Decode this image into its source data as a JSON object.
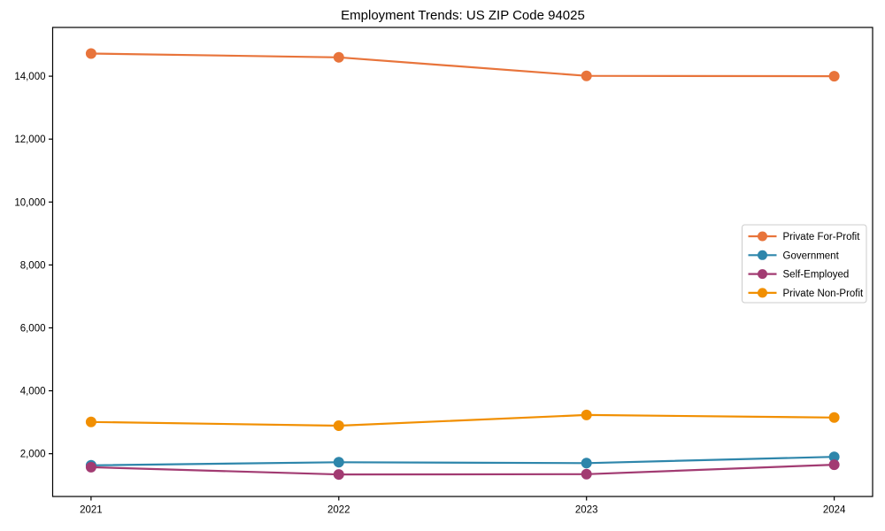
{
  "chart_data": {
    "type": "line",
    "title": "Employment Trends: US ZIP Code 94025",
    "xlabel": "",
    "ylabel": "",
    "x": [
      2021,
      2022,
      2023,
      2024
    ],
    "xtick_labels": [
      "2021",
      "2022",
      "2023",
      "2024"
    ],
    "yticks": [
      2000,
      4000,
      6000,
      8000,
      10000,
      12000,
      14000
    ],
    "ytick_labels": [
      "2,000",
      "4,000",
      "6,000",
      "8,000",
      "10,000",
      "12,000",
      "14,000"
    ],
    "xlim": [
      2020.845,
      2024.155
    ],
    "ylim": [
      640,
      15550
    ],
    "grid": false,
    "legend_position": "center right",
    "background_color": "#ffffff",
    "spine_color": "#000000",
    "legend_border_color": "#cccccc",
    "series": [
      {
        "name": "Private For-Profit",
        "color": "#E8743B",
        "values": [
          14720,
          14600,
          14010,
          14000
        ]
      },
      {
        "name": "Government",
        "color": "#2E86AB",
        "values": [
          1630,
          1730,
          1700,
          1900
        ]
      },
      {
        "name": "Self-Employed",
        "color": "#A23B72",
        "values": [
          1570,
          1340,
          1350,
          1650
        ]
      },
      {
        "name": "Private Non-Profit",
        "color": "#F18F01",
        "values": [
          3010,
          2890,
          3230,
          3150
        ]
      }
    ]
  }
}
